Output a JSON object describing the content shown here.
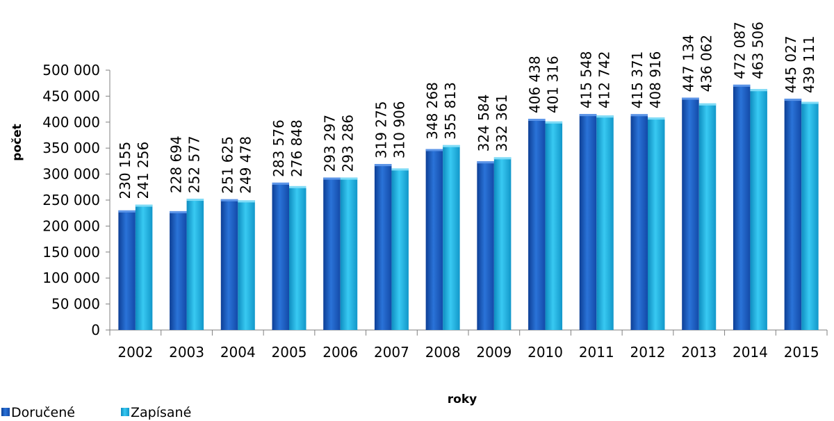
{
  "chart_data": {
    "type": "bar",
    "title": "",
    "xlabel": "roky",
    "ylabel": "počet",
    "ylim": [
      0,
      500000
    ],
    "yticks": [
      0,
      50000,
      100000,
      150000,
      200000,
      250000,
      300000,
      350000,
      400000,
      450000,
      500000
    ],
    "ytick_labels": [
      "0",
      "50 000",
      "100 000",
      "150 000",
      "200 000",
      "250 000",
      "300 000",
      "350 000",
      "400 000",
      "450 000",
      "500 000"
    ],
    "grid": false,
    "legend_position": "bottom-left",
    "categories": [
      "2002",
      "2003",
      "2004",
      "2005",
      "2006",
      "2007",
      "2008",
      "2009",
      "2010",
      "2011",
      "2012",
      "2013",
      "2014",
      "2015"
    ],
    "series": [
      {
        "name": "Doručené",
        "color": "#1f5fc2",
        "values": [
          230155,
          228694,
          251625,
          283576,
          293297,
          319275,
          348268,
          324584,
          406438,
          415548,
          415371,
          447134,
          472087,
          445027
        ],
        "labels": [
          "230 155",
          "228 694",
          "251 625",
          "283 576",
          "293 297",
          "319 275",
          "348 268",
          "324 584",
          "406 438",
          "415 548",
          "415 371",
          "447 134",
          "472 087",
          "445 027"
        ]
      },
      {
        "name": "Zapísané",
        "color": "#1fb2e3",
        "values": [
          241256,
          252577,
          249478,
          276848,
          293286,
          310906,
          355813,
          332361,
          401316,
          412742,
          408916,
          436062,
          463506,
          439111
        ],
        "labels": [
          "241 256",
          "252 577",
          "249 478",
          "276 848",
          "293 286",
          "310 906",
          "355 813",
          "332 361",
          "401 316",
          "412 742",
          "408 916",
          "436 062",
          "463 506",
          "439 111"
        ]
      }
    ]
  }
}
